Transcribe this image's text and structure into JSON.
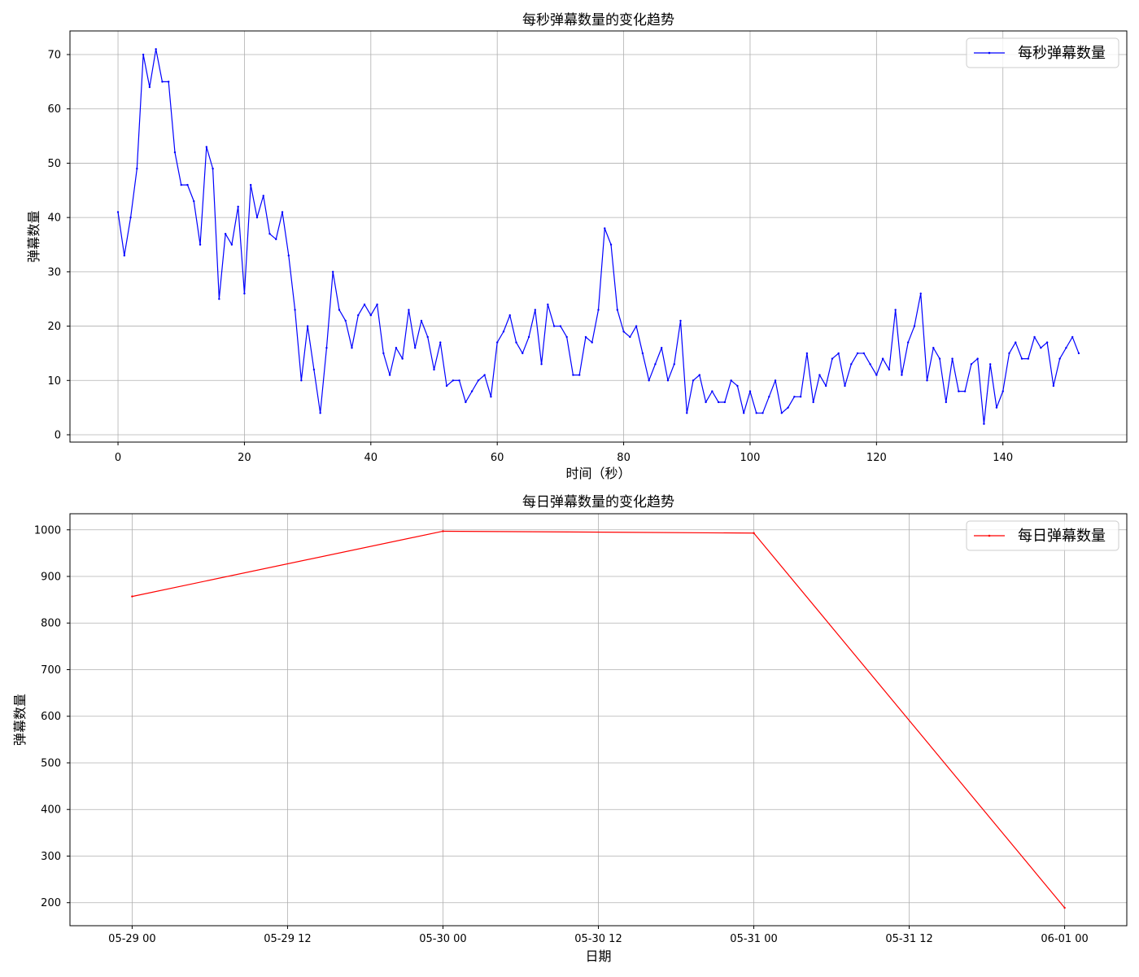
{
  "chart_data": [
    {
      "type": "line",
      "title": "每秒弹幕数量的变化趋势",
      "xlabel": "时间（秒）",
      "ylabel": "弹幕数量",
      "xlim": [
        -7.6,
        159.6
      ],
      "ylim": [
        -1.35,
        74.35
      ],
      "xticks": [
        0,
        20,
        40,
        60,
        80,
        100,
        120,
        140
      ],
      "yticks": [
        0,
        10,
        20,
        30,
        40,
        50,
        60,
        70
      ],
      "grid": true,
      "legend_position": "top-right",
      "series": [
        {
          "name": "每秒弹幕数量",
          "color": "#0000ff",
          "x": [
            0,
            1,
            2,
            3,
            4,
            5,
            6,
            7,
            8,
            9,
            10,
            11,
            12,
            13,
            14,
            15,
            16,
            17,
            18,
            19,
            20,
            21,
            22,
            23,
            24,
            25,
            26,
            27,
            28,
            29,
            30,
            31,
            32,
            33,
            34,
            35,
            36,
            37,
            38,
            39,
            40,
            41,
            42,
            43,
            44,
            45,
            46,
            47,
            48,
            49,
            50,
            51,
            52,
            53,
            54,
            55,
            56,
            57,
            58,
            59,
            60,
            61,
            62,
            63,
            64,
            65,
            66,
            67,
            68,
            69,
            70,
            71,
            72,
            73,
            74,
            75,
            76,
            77,
            78,
            79,
            80,
            81,
            82,
            83,
            84,
            85,
            86,
            87,
            88,
            89,
            90,
            91,
            92,
            93,
            94,
            95,
            96,
            97,
            98,
            99,
            100,
            101,
            102,
            103,
            104,
            105,
            106,
            107,
            108,
            109,
            110,
            111,
            112,
            113,
            114,
            115,
            116,
            117,
            118,
            119,
            120,
            121,
            122,
            123,
            124,
            125,
            126,
            127,
            128,
            129,
            130,
            131,
            132,
            133,
            134,
            135,
            136,
            137,
            138,
            139,
            140,
            141,
            142,
            143,
            144,
            145,
            146,
            147,
            148,
            149,
            150,
            151,
            152
          ],
          "y": [
            41,
            33,
            40,
            49,
            70,
            64,
            71,
            65,
            65,
            52,
            46,
            46,
            43,
            35,
            53,
            49,
            25,
            37,
            35,
            42,
            26,
            46,
            40,
            44,
            37,
            36,
            41,
            33,
            23,
            10,
            20,
            12,
            4,
            16,
            30,
            23,
            21,
            16,
            22,
            24,
            22,
            24,
            15,
            11,
            16,
            14,
            23,
            16,
            21,
            18,
            12,
            17,
            9,
            10,
            10,
            6,
            8,
            10,
            11,
            7,
            17,
            19,
            22,
            17,
            15,
            18,
            23,
            13,
            24,
            20,
            20,
            18,
            11,
            11,
            18,
            17,
            23,
            38,
            35,
            23,
            19,
            18,
            20,
            15,
            10,
            13,
            16,
            10,
            13,
            21,
            4,
            10,
            11,
            6,
            8,
            6,
            6,
            10,
            9,
            4,
            8,
            4,
            4,
            7,
            10,
            4,
            5,
            7,
            7,
            15,
            6,
            11,
            9,
            14,
            15,
            9,
            13,
            15,
            15,
            13,
            11,
            14,
            12,
            23,
            11,
            17,
            20,
            26,
            10,
            16,
            14,
            6,
            14,
            8,
            8,
            13,
            14,
            2,
            13,
            5,
            8,
            15,
            17,
            14,
            14,
            18,
            16,
            17,
            9,
            14,
            16,
            18,
            15
          ]
        }
      ]
    },
    {
      "type": "line",
      "title": "每日弹幕数量的变化趋势",
      "xlabel": "日期",
      "ylabel": "弹幕数量",
      "xlim": [
        "2024-05-28 19:12",
        "2024-06-01 04:48"
      ],
      "ylim": [
        150.6,
        1034.5
      ],
      "xticks": [
        "05-29 00",
        "05-29 12",
        "05-30 00",
        "05-30 12",
        "05-31 00",
        "05-31 12",
        "06-01 00"
      ],
      "yticks": [
        200,
        300,
        400,
        500,
        600,
        700,
        800,
        900,
        1000
      ],
      "grid": true,
      "legend_position": "top-right",
      "series": [
        {
          "name": "每日弹幕数量",
          "color": "#ff0000",
          "x": [
            "05-29",
            "05-30",
            "05-31",
            "06-01"
          ],
          "y": [
            857,
            997,
            993,
            189
          ]
        }
      ]
    }
  ]
}
